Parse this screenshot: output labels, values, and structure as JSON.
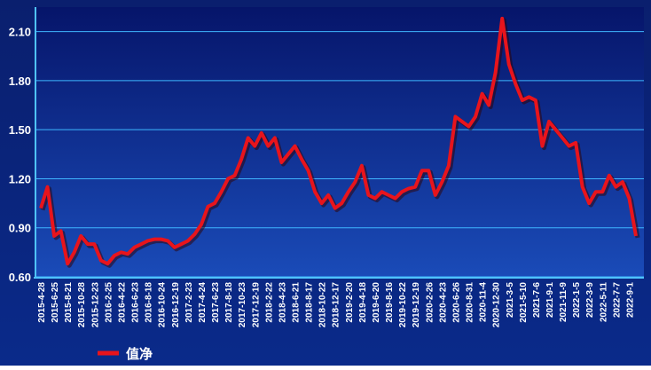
{
  "chart_data": {
    "type": "line",
    "categories": [
      "2015-4-28",
      null,
      "2015-6-25",
      null,
      "2015-8-21",
      null,
      "2015-10-28",
      null,
      "2015-12-23",
      null,
      "2016-2-25",
      null,
      "2016-4-22",
      null,
      "2016-6-23",
      null,
      "2016-8-18",
      null,
      "2016-10-24",
      null,
      "2016-12-19",
      null,
      "2017-2-23",
      null,
      "2017-4-24",
      null,
      "2017-6-23",
      null,
      "2017-8-18",
      null,
      "2017-10-23",
      null,
      "2017-12-19",
      null,
      "2018-2-22",
      null,
      "2018-4-23",
      null,
      "2018-6-21",
      null,
      "2018-8-17",
      null,
      "2018-10-22",
      null,
      "2018-12-17",
      null,
      "2019-2-20",
      null,
      "2019-4-18",
      null,
      "2019-6-20",
      null,
      "2019-8-16",
      null,
      "2019-10-22",
      null,
      "2019-12-19",
      null,
      "2020-2-26",
      null,
      "2020-4-23",
      null,
      "2020-6-26",
      null,
      "2020-8-31",
      null,
      "2020-11-4",
      null,
      "2020-12-30",
      null,
      "2021-3-5",
      null,
      "2021-5-10",
      null,
      "2021-7-6",
      null,
      "2021-9-1",
      null,
      "2021-11-9",
      null,
      "2022-1-5",
      null,
      "2022-3-9",
      null,
      "2022-5-11",
      null,
      "2022-7-7",
      null,
      "2022-9-1",
      null
    ],
    "series": [
      {
        "name": "值净",
        "color": "#e8141c",
        "values": [
          1.02,
          1.15,
          0.85,
          0.88,
          0.68,
          0.75,
          0.85,
          0.8,
          0.8,
          0.7,
          0.68,
          0.73,
          0.75,
          0.74,
          0.78,
          0.8,
          0.82,
          0.83,
          0.83,
          0.82,
          0.78,
          0.8,
          0.82,
          0.86,
          0.92,
          1.03,
          1.05,
          1.12,
          1.2,
          1.22,
          1.32,
          1.45,
          1.4,
          1.48,
          1.4,
          1.45,
          1.3,
          1.35,
          1.4,
          1.32,
          1.25,
          1.12,
          1.05,
          1.1,
          1.02,
          1.05,
          1.12,
          1.18,
          1.28,
          1.1,
          1.08,
          1.12,
          1.1,
          1.08,
          1.12,
          1.14,
          1.15,
          1.25,
          1.25,
          1.1,
          1.18,
          1.28,
          1.58,
          1.55,
          1.52,
          1.58,
          1.72,
          1.65,
          1.85,
          2.18,
          1.9,
          1.78,
          1.68,
          1.7,
          1.68,
          1.4,
          1.55,
          1.5,
          1.45,
          1.4,
          1.42,
          1.15,
          1.05,
          1.12,
          1.12,
          1.22,
          1.15,
          1.18,
          1.08,
          0.85
        ]
      }
    ],
    "ylim": [
      0.6,
      2.25
    ],
    "yticks": [
      {
        "value": 0.6,
        "label": "0.60"
      },
      {
        "value": 0.9,
        "label": "0.90"
      },
      {
        "value": 1.2,
        "label": "1.20"
      },
      {
        "value": 1.5,
        "label": "1.50"
      },
      {
        "value": 1.8,
        "label": "1.80"
      },
      {
        "value": 2.1,
        "label": "2.10"
      }
    ],
    "grid": true
  }
}
